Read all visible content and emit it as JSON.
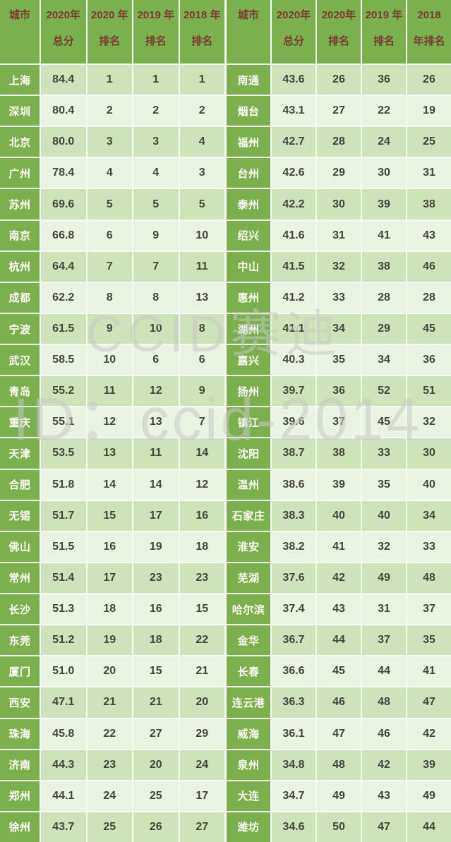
{
  "watermark": {
    "line1": "CCID赛迪",
    "line2": "ID：ccid-2014"
  },
  "colors": {
    "header_green": "#7ab04d",
    "stripe_dark": "#cfe3ba",
    "stripe_light": "#eaf4e2",
    "header_text": "#7a3a30",
    "number_text": "#45443c",
    "city_text": "#fffef8"
  },
  "chart_data": {
    "type": "table",
    "columns": [
      "城市",
      "2020年总分",
      "2020年排名",
      "2019年排名",
      "2018年排名"
    ],
    "tables": [
      {
        "headers": [
          {
            "line1": "城市",
            "line2": ""
          },
          {
            "line1": "2020年",
            "line2": "总分"
          },
          {
            "line1": "2020 年",
            "line2": "排名"
          },
          {
            "line1": "2019 年",
            "line2": "排名"
          },
          {
            "line1": "2018 年",
            "line2": "排名"
          }
        ],
        "rows": [
          [
            "上海",
            "84.4",
            "1",
            "1",
            "1"
          ],
          [
            "深圳",
            "80.4",
            "2",
            "2",
            "2"
          ],
          [
            "北京",
            "80.0",
            "3",
            "3",
            "4"
          ],
          [
            "广州",
            "78.4",
            "4",
            "4",
            "3"
          ],
          [
            "苏州",
            "69.6",
            "5",
            "5",
            "5"
          ],
          [
            "南京",
            "66.8",
            "6",
            "9",
            "10"
          ],
          [
            "杭州",
            "64.4",
            "7",
            "7",
            "11"
          ],
          [
            "成都",
            "62.2",
            "8",
            "8",
            "13"
          ],
          [
            "宁波",
            "61.5",
            "9",
            "10",
            "8"
          ],
          [
            "武汉",
            "58.5",
            "10",
            "6",
            "6"
          ],
          [
            "青岛",
            "55.2",
            "11",
            "12",
            "9"
          ],
          [
            "重庆",
            "55.1",
            "12",
            "13",
            "7"
          ],
          [
            "天津",
            "53.5",
            "13",
            "11",
            "14"
          ],
          [
            "合肥",
            "51.8",
            "14",
            "14",
            "12"
          ],
          [
            "无锡",
            "51.7",
            "15",
            "17",
            "16"
          ],
          [
            "佛山",
            "51.5",
            "16",
            "19",
            "18"
          ],
          [
            "常州",
            "51.4",
            "17",
            "23",
            "23"
          ],
          [
            "长沙",
            "51.3",
            "18",
            "16",
            "15"
          ],
          [
            "东莞",
            "51.2",
            "19",
            "18",
            "22"
          ],
          [
            "厦门",
            "51.0",
            "20",
            "15",
            "21"
          ],
          [
            "西安",
            "47.1",
            "21",
            "21",
            "20"
          ],
          [
            "珠海",
            "45.8",
            "22",
            "27",
            "29"
          ],
          [
            "济南",
            "44.3",
            "23",
            "20",
            "24"
          ],
          [
            "郑州",
            "44.1",
            "24",
            "25",
            "17"
          ],
          [
            "徐州",
            "43.7",
            "25",
            "26",
            "27"
          ]
        ]
      },
      {
        "headers": [
          {
            "line1": "城市",
            "line2": ""
          },
          {
            "line1": "2020年",
            "line2": "总分"
          },
          {
            "line1": "2020年",
            "line2": "排名"
          },
          {
            "line1": "2019 年",
            "line2": "排名"
          },
          {
            "line1": "2018",
            "line2": "年排名"
          }
        ],
        "rows": [
          [
            "南通",
            "43.6",
            "26",
            "36",
            "26"
          ],
          [
            "烟台",
            "43.1",
            "27",
            "22",
            "19"
          ],
          [
            "福州",
            "42.7",
            "28",
            "24",
            "25"
          ],
          [
            "台州",
            "42.6",
            "29",
            "30",
            "31"
          ],
          [
            "泰州",
            "42.2",
            "30",
            "39",
            "38"
          ],
          [
            "绍兴",
            "41.6",
            "31",
            "41",
            "43"
          ],
          [
            "中山",
            "41.5",
            "32",
            "38",
            "46"
          ],
          [
            "惠州",
            "41.2",
            "33",
            "28",
            "28"
          ],
          [
            "湖州",
            "41.1",
            "34",
            "29",
            "45"
          ],
          [
            "嘉兴",
            "40.3",
            "35",
            "34",
            "36"
          ],
          [
            "扬州",
            "39.7",
            "36",
            "52",
            "51"
          ],
          [
            "镇江",
            "39.6",
            "37",
            "45",
            "32"
          ],
          [
            "沈阳",
            "38.7",
            "38",
            "33",
            "30"
          ],
          [
            "温州",
            "38.6",
            "39",
            "35",
            "40"
          ],
          [
            "石家庄",
            "38.3",
            "40",
            "40",
            "34"
          ],
          [
            "淮安",
            "38.2",
            "41",
            "32",
            "33"
          ],
          [
            "芜湖",
            "37.6",
            "42",
            "49",
            "48"
          ],
          [
            "哈尔滨",
            "37.4",
            "43",
            "31",
            "37"
          ],
          [
            "金华",
            "36.7",
            "44",
            "37",
            "35"
          ],
          [
            "长春",
            "36.6",
            "45",
            "44",
            "41"
          ],
          [
            "连云港",
            "36.3",
            "46",
            "48",
            "47"
          ],
          [
            "威海",
            "36.1",
            "47",
            "46",
            "42"
          ],
          [
            "泉州",
            "34.8",
            "48",
            "42",
            "39"
          ],
          [
            "大连",
            "34.7",
            "49",
            "43",
            "49"
          ],
          [
            "潍坊",
            "34.6",
            "50",
            "47",
            "44"
          ]
        ]
      }
    ]
  }
}
